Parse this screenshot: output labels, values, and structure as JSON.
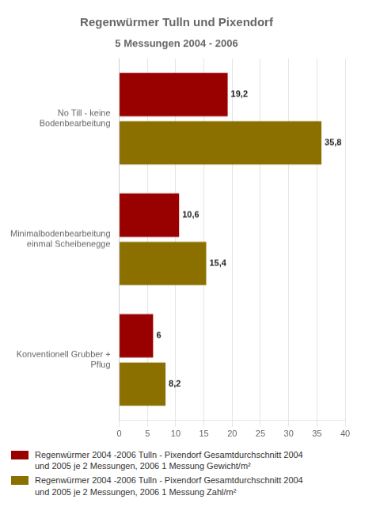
{
  "chart_data": {
    "type": "bar",
    "orientation": "horizontal",
    "title": "Regenwürmer Tulln und Pixendorf",
    "subtitle": "5 Messungen 2004 - 2006",
    "categories": [
      "No Till - keine\nBodenbearbeitung",
      "Minimalbodenbearbeitung\neinmal Scheibenegge",
      "Konventionell Grubber +\nPflug"
    ],
    "series": [
      {
        "name": "Regenwürmer 2004 -2006 Tulln - Pixendorf Gesamtdurchschnitt 2004\nund 2005 je 2 Messungen, 2006 1 Messung Gewicht/m²",
        "color": "#990000",
        "values": [
          19.2,
          10.6,
          6.0
        ],
        "value_labels": [
          "19,2",
          "10,6",
          "6"
        ]
      },
      {
        "name": "Regenwürmer 2004 -2006 Tulln - Pixendorf Gesamtdurchschnitt 2004\nund 2005 je 2 Messungen, 2006 1 Messung Zahl/m²",
        "color": "#8B7000",
        "values": [
          35.8,
          15.4,
          8.2
        ],
        "value_labels": [
          "35,8",
          "15,4",
          "8,2"
        ]
      }
    ],
    "xlim": [
      0,
      40
    ],
    "xticks": [
      0,
      5,
      10,
      15,
      20,
      25,
      30,
      35,
      40
    ],
    "grid": true,
    "legend": "bottom",
    "data_labels": true
  }
}
